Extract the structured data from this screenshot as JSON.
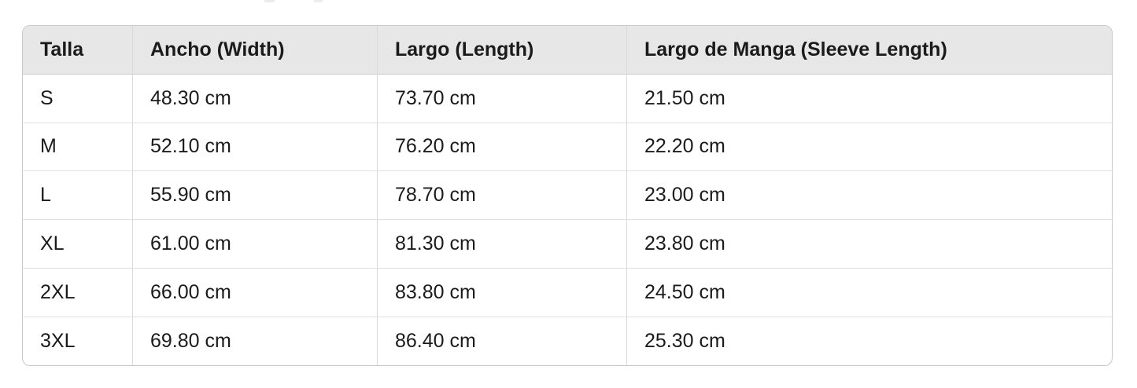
{
  "table": {
    "columns": [
      "Talla",
      "Ancho (Width)",
      "Largo (Length)",
      "Largo de Manga (Sleeve Length)"
    ],
    "rows": [
      {
        "size": "S",
        "width": "48.30 cm",
        "length": "73.70 cm",
        "sleeve": "21.50 cm"
      },
      {
        "size": "M",
        "width": "52.10 cm",
        "length": "76.20 cm",
        "sleeve": "22.20 cm"
      },
      {
        "size": "L",
        "width": "55.90 cm",
        "length": "78.70 cm",
        "sleeve": "23.00 cm"
      },
      {
        "size": "XL",
        "width": "61.00 cm",
        "length": "81.30 cm",
        "sleeve": "23.80 cm"
      },
      {
        "size": "2XL",
        "width": "66.00 cm",
        "length": "83.80 cm",
        "sleeve": "24.50 cm"
      },
      {
        "size": "3XL",
        "width": "69.80 cm",
        "length": "86.40 cm",
        "sleeve": "25.30 cm"
      }
    ]
  },
  "chart_data": {
    "type": "table",
    "title": "",
    "columns": [
      "Talla",
      "Ancho (Width)",
      "Largo (Length)",
      "Largo de Manga (Sleeve Length)"
    ],
    "rows": [
      [
        "S",
        "48.30 cm",
        "73.70 cm",
        "21.50 cm"
      ],
      [
        "M",
        "52.10 cm",
        "76.20 cm",
        "22.20 cm"
      ],
      [
        "L",
        "55.90 cm",
        "78.70 cm",
        "23.00 cm"
      ],
      [
        "XL",
        "61.00 cm",
        "81.30 cm",
        "23.80 cm"
      ],
      [
        "2XL",
        "66.00 cm",
        "83.80 cm",
        "24.50 cm"
      ],
      [
        "3XL",
        "69.80 cm",
        "86.40 cm",
        "25.30 cm"
      ]
    ],
    "numeric": {
      "sizes": [
        "S",
        "M",
        "L",
        "XL",
        "2XL",
        "3XL"
      ],
      "width_cm": [
        48.3,
        52.1,
        55.9,
        61.0,
        66.0,
        69.8
      ],
      "length_cm": [
        73.7,
        76.2,
        78.7,
        81.3,
        83.8,
        86.4
      ],
      "sleeve_cm": [
        21.5,
        22.2,
        23.0,
        23.8,
        24.5,
        25.3
      ]
    },
    "units": "cm"
  },
  "colors": {
    "header_bg": "#e7e7e7",
    "border_outer": "#c9c9c9",
    "border_inner": "#d9d9d9",
    "text": "#1b1b1b",
    "background": "#ffffff"
  }
}
